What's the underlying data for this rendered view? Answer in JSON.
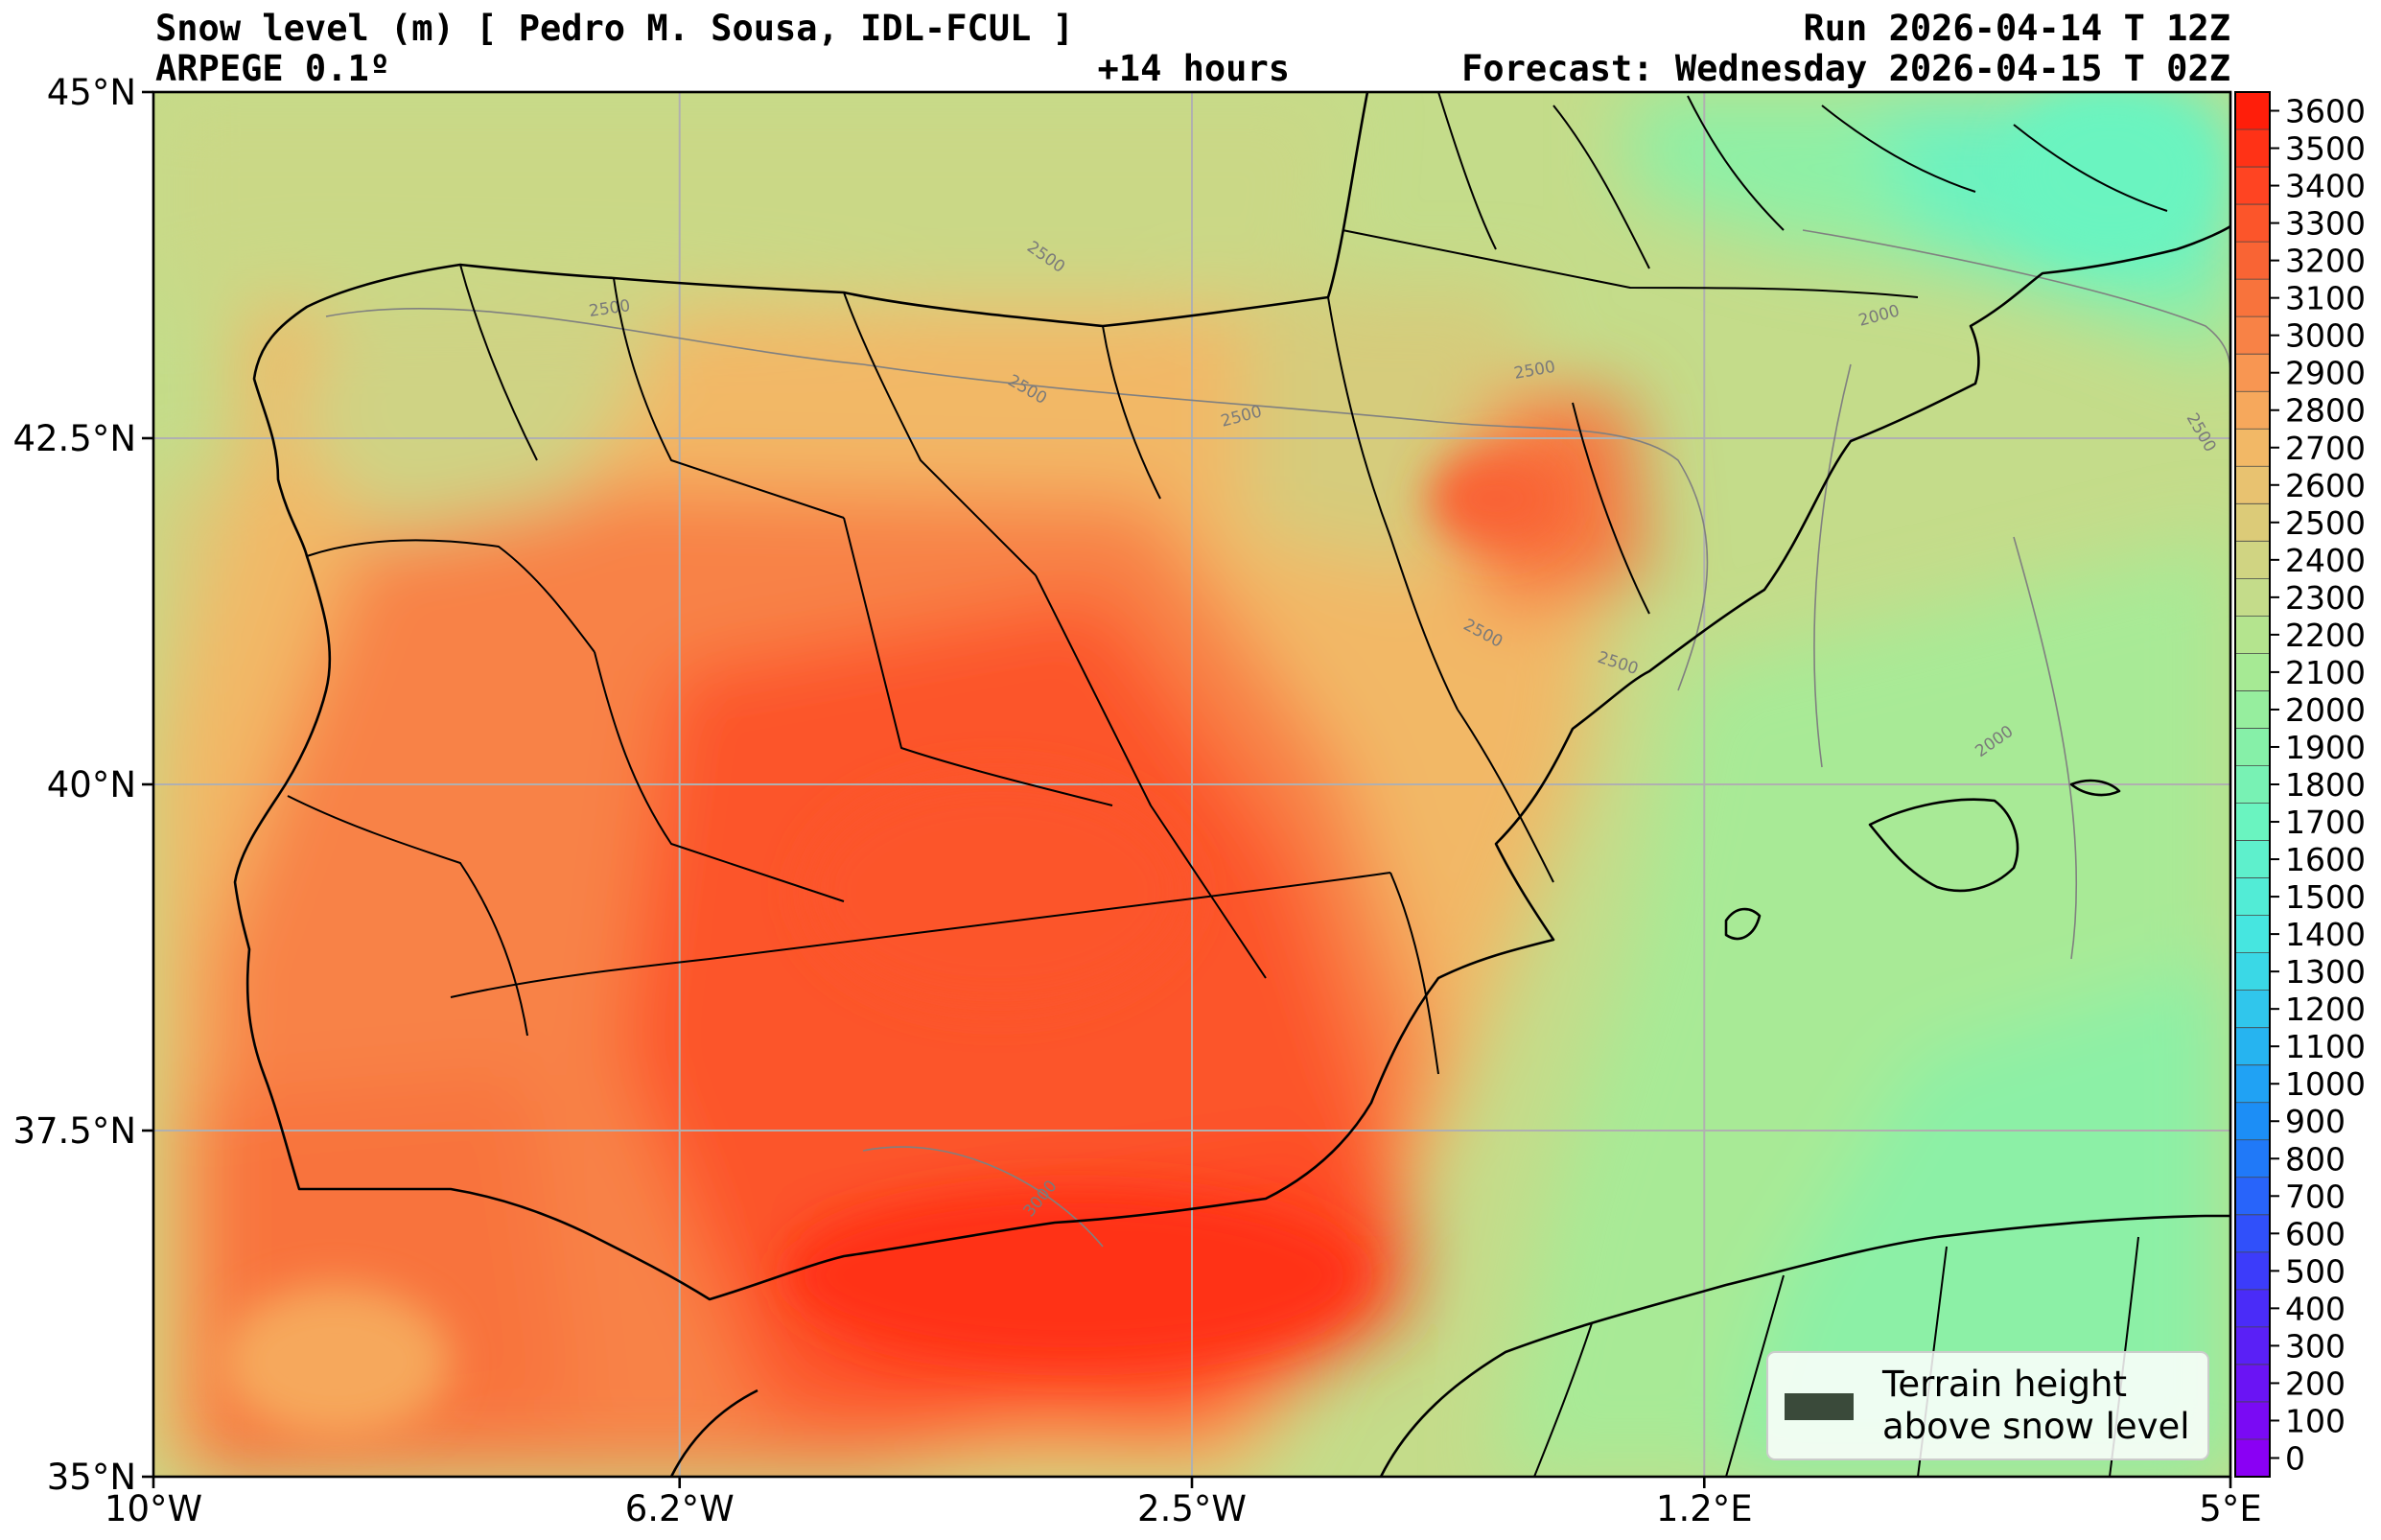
{
  "header": {
    "title_left": "Snow level (m) [ Pedro M. Sousa, IDL-FCUL ]",
    "subtitle_left": "ARPEGE 0.1º",
    "run": "Run 2026-04-14 T 12Z",
    "lead": "+14 hours",
    "forecast": "Forecast: Wednesday 2026-04-15 T 02Z"
  },
  "map": {
    "extent": {
      "lon_min": -10,
      "lon_max": 5,
      "lat_min": 35,
      "lat_max": 45
    },
    "lat_ticks": [
      {
        "value": 45,
        "label": "45°N"
      },
      {
        "value": 42.5,
        "label": "42.5°N"
      },
      {
        "value": 40,
        "label": "40°N"
      },
      {
        "value": 37.5,
        "label": "37.5°N"
      },
      {
        "value": 35,
        "label": "35°N"
      }
    ],
    "lon_ticks": [
      {
        "value": -10,
        "label": "10°W"
      },
      {
        "value": -6.2,
        "label": "6.2°W"
      },
      {
        "value": -2.5,
        "label": "2.5°W"
      },
      {
        "value": 1.2,
        "label": "1.2°E"
      },
      {
        "value": 5,
        "label": "5°E"
      }
    ],
    "contour_labels": [
      "2500",
      "2500",
      "2500",
      "2500",
      "2500",
      "2500",
      "2500",
      "2000",
      "2000",
      "2500",
      "3000"
    ],
    "legend": {
      "line1": "Terrain height",
      "line2": "above snow level",
      "swatch_color": "#3a4a3a"
    }
  },
  "colorbar": {
    "levels": [
      3600,
      3500,
      3400,
      3300,
      3200,
      3100,
      3000,
      2900,
      2800,
      2700,
      2600,
      2500,
      2400,
      2300,
      2200,
      2100,
      2000,
      1900,
      1800,
      1700,
      1600,
      1500,
      1400,
      1300,
      1200,
      1100,
      1000,
      900,
      800,
      700,
      600,
      500,
      400,
      300,
      200,
      100,
      0
    ],
    "colors": [
      "#ff1e0a",
      "#ff3216",
      "#ff4422",
      "#fc552a",
      "#f96434",
      "#f8733c",
      "#f88246",
      "#f89652",
      "#f6a85c",
      "#f2b866",
      "#e8c270",
      "#dccb78",
      "#d0d482",
      "#c4dc8a",
      "#b4e48e",
      "#a6ea94",
      "#96ee9e",
      "#86f0a8",
      "#78f2b4",
      "#6af4c0",
      "#5ef0cc",
      "#52ecd6",
      "#46e6e0",
      "#3ad8e6",
      "#30c6ec",
      "#26b4f0",
      "#20a2f4",
      "#1c8ef6",
      "#2079f8",
      "#2864fa",
      "#3050fa",
      "#3c3cfa",
      "#4a2cf8",
      "#5a20f6",
      "#6a14f4",
      "#7a0af4",
      "#8a00f4"
    ]
  },
  "chart_data": {
    "type": "heatmap",
    "title": "Snow level (m) [ Pedro M. Sousa, IDL-FCUL ]",
    "model": "ARPEGE 0.1º",
    "run": "Run 2026-04-14 T 12Z",
    "lead": "+14 hours",
    "forecast": "Forecast: Wednesday 2026-04-15 T 02Z",
    "xlim": [
      -10,
      5
    ],
    "ylim": [
      35,
      45
    ],
    "colorbar_range": [
      0,
      3600
    ],
    "colorbar_step": 100,
    "contour_levels": [
      2000,
      2500,
      3000
    ],
    "grid": true,
    "legend": "bottom-right"
  }
}
